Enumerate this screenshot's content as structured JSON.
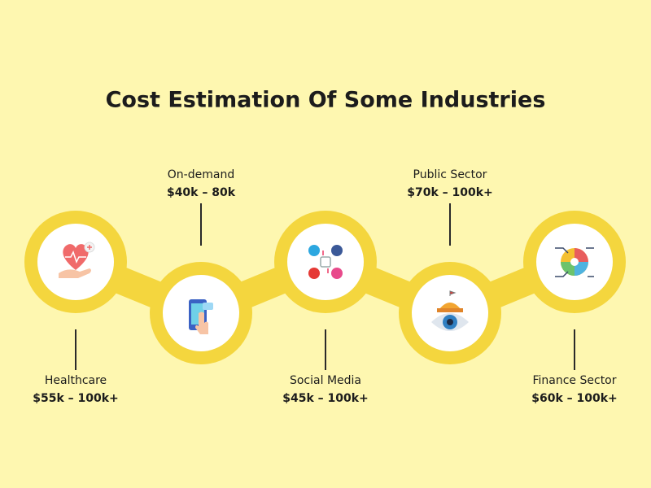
{
  "header": {
    "title": "Cost Estimation Of Some Industries"
  },
  "items": [
    {
      "name": "Healthcare",
      "cost": "$55k – 100k+"
    },
    {
      "name": "On-demand",
      "cost": "$40k – 80k"
    },
    {
      "name": "Social Media",
      "cost": "$45k – 100k+"
    },
    {
      "name": "Public Sector",
      "cost": "$70k – 100k+"
    },
    {
      "name": "Finance Sector",
      "cost": "$60k – 100k+"
    }
  ]
}
